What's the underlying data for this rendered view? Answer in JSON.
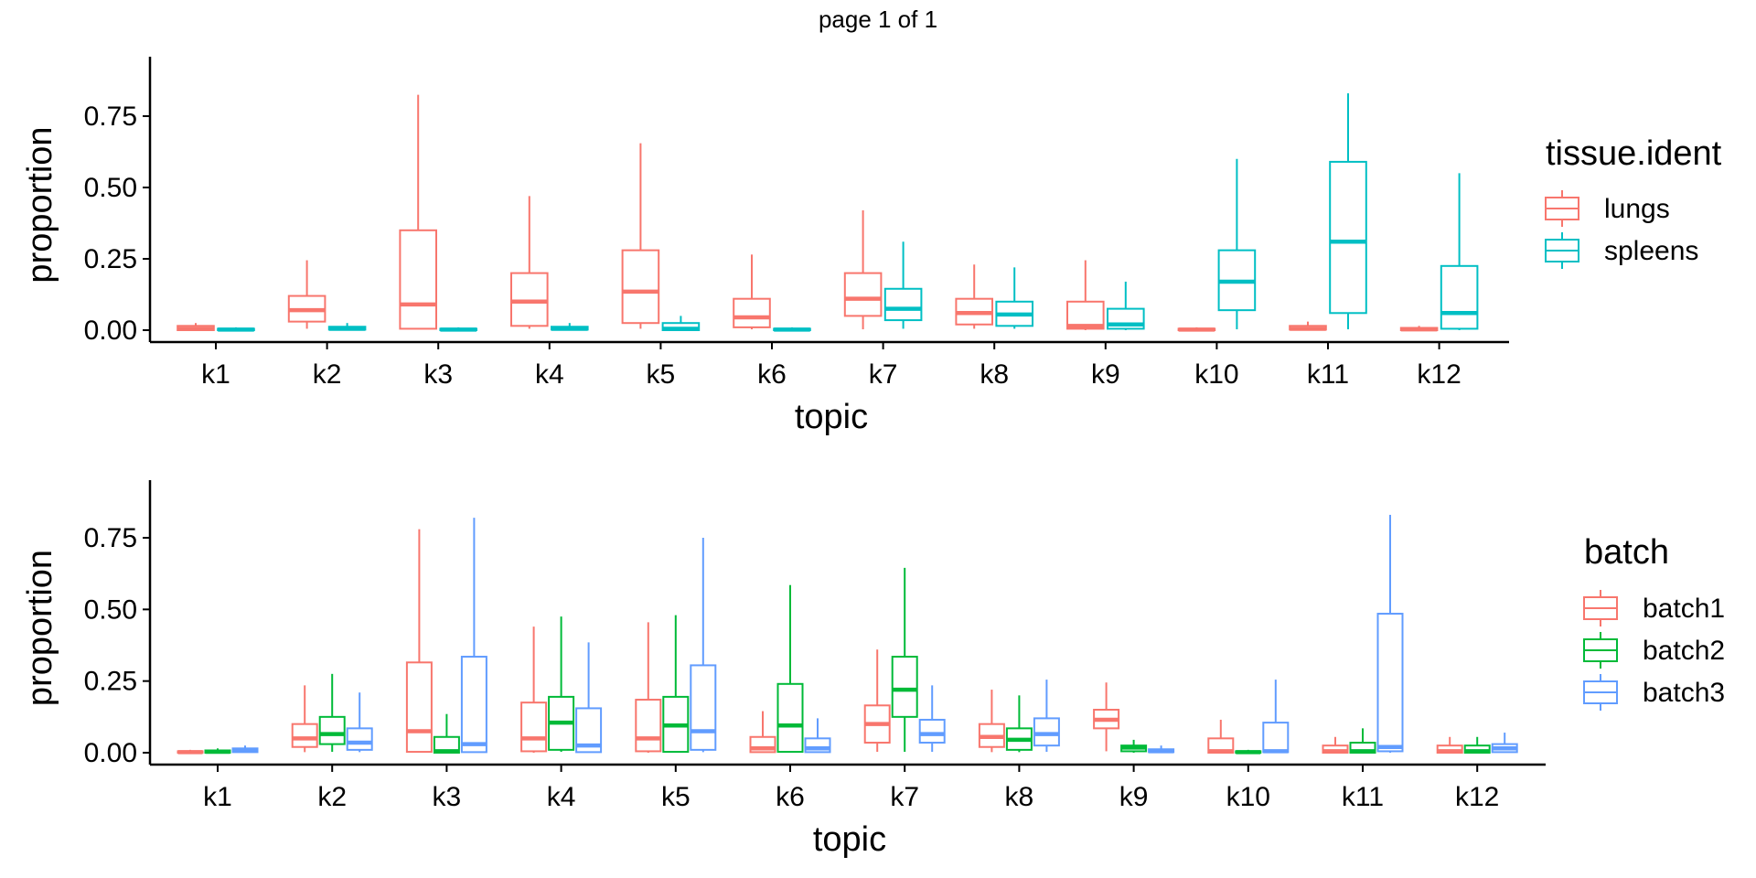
{
  "page_title": "page 1 of 1",
  "chart_data": [
    {
      "type": "boxplot",
      "xlabel": "topic",
      "ylabel": "proportion",
      "categories": [
        "k1",
        "k2",
        "k3",
        "k4",
        "k5",
        "k6",
        "k7",
        "k8",
        "k9",
        "k10",
        "k11",
        "k12"
      ],
      "ylim": [
        -0.03,
        0.95
      ],
      "yticks": [
        0,
        0.25,
        0.5,
        0.75
      ],
      "ytick_labels": [
        "0.00",
        "0.25",
        "0.50",
        "0.75"
      ],
      "grid": false,
      "legend": {
        "title": "tissue.ident",
        "position": "right"
      },
      "series": [
        {
          "name": "lungs",
          "color": "#F8766D",
          "boxes": [
            {
              "min": 0,
              "q1": 0,
              "median": 0.005,
              "q3": 0.015,
              "max": 0.025
            },
            {
              "min": 0.005,
              "q1": 0.03,
              "median": 0.07,
              "q3": 0.12,
              "max": 0.245
            },
            {
              "min": 0.003,
              "q1": 0.005,
              "median": 0.09,
              "q3": 0.35,
              "max": 0.825
            },
            {
              "min": 0.005,
              "q1": 0.015,
              "median": 0.1,
              "q3": 0.2,
              "max": 0.47
            },
            {
              "min": 0.005,
              "q1": 0.025,
              "median": 0.135,
              "q3": 0.28,
              "max": 0.655
            },
            {
              "min": 0.003,
              "q1": 0.01,
              "median": 0.045,
              "q3": 0.11,
              "max": 0.265
            },
            {
              "min": 0.003,
              "q1": 0.05,
              "median": 0.11,
              "q3": 0.2,
              "max": 0.42
            },
            {
              "min": 0.005,
              "q1": 0.02,
              "median": 0.06,
              "q3": 0.11,
              "max": 0.23
            },
            {
              "min": 0,
              "q1": 0.005,
              "median": 0.015,
              "q3": 0.1,
              "max": 0.245
            },
            {
              "min": 0,
              "q1": 0,
              "median": 0.002,
              "q3": 0.005,
              "max": 0.01
            },
            {
              "min": 0,
              "q1": 0.002,
              "median": 0.005,
              "q3": 0.015,
              "max": 0.03
            },
            {
              "min": 0,
              "q1": 0,
              "median": 0.003,
              "q3": 0.008,
              "max": 0.015
            }
          ]
        },
        {
          "name": "spleens",
          "color": "#00BFC4",
          "boxes": [
            {
              "min": 0,
              "q1": 0,
              "median": 0.002,
              "q3": 0.005,
              "max": 0.01
            },
            {
              "min": 0,
              "q1": 0.002,
              "median": 0.005,
              "q3": 0.012,
              "max": 0.025
            },
            {
              "min": 0,
              "q1": 0,
              "median": 0.002,
              "q3": 0.005,
              "max": 0.01
            },
            {
              "min": 0,
              "q1": 0.002,
              "median": 0.005,
              "q3": 0.012,
              "max": 0.025
            },
            {
              "min": 0,
              "q1": 0,
              "median": 0.005,
              "q3": 0.025,
              "max": 0.05
            },
            {
              "min": 0,
              "q1": 0,
              "median": 0.002,
              "q3": 0.005,
              "max": 0.01
            },
            {
              "min": 0.005,
              "q1": 0.035,
              "median": 0.075,
              "q3": 0.145,
              "max": 0.31
            },
            {
              "min": 0.005,
              "q1": 0.015,
              "median": 0.055,
              "q3": 0.1,
              "max": 0.22
            },
            {
              "min": 0,
              "q1": 0.005,
              "median": 0.02,
              "q3": 0.075,
              "max": 0.17
            },
            {
              "min": 0.003,
              "q1": 0.07,
              "median": 0.17,
              "q3": 0.28,
              "max": 0.6
            },
            {
              "min": 0.003,
              "q1": 0.06,
              "median": 0.31,
              "q3": 0.59,
              "max": 0.83
            },
            {
              "min": 0,
              "q1": 0.005,
              "median": 0.06,
              "q3": 0.225,
              "max": 0.55
            }
          ]
        }
      ]
    },
    {
      "type": "boxplot",
      "xlabel": "topic",
      "ylabel": "proportion",
      "categories": [
        "k1",
        "k2",
        "k3",
        "k4",
        "k5",
        "k6",
        "k7",
        "k8",
        "k9",
        "k10",
        "k11",
        "k12"
      ],
      "ylim": [
        -0.03,
        0.95
      ],
      "yticks": [
        0,
        0.25,
        0.5,
        0.75
      ],
      "ytick_labels": [
        "0.00",
        "0.25",
        "0.50",
        "0.75"
      ],
      "grid": false,
      "legend": {
        "title": "batch",
        "position": "right"
      },
      "series": [
        {
          "name": "batch1",
          "color": "#F8766D",
          "boxes": [
            {
              "min": 0,
              "q1": 0,
              "median": 0.002,
              "q3": 0.005,
              "max": 0.01
            },
            {
              "min": 0.002,
              "q1": 0.02,
              "median": 0.05,
              "q3": 0.1,
              "max": 0.235
            },
            {
              "min": 0,
              "q1": 0.003,
              "median": 0.075,
              "q3": 0.315,
              "max": 0.78
            },
            {
              "min": 0,
              "q1": 0.005,
              "median": 0.05,
              "q3": 0.175,
              "max": 0.44
            },
            {
              "min": 0,
              "q1": 0.005,
              "median": 0.05,
              "q3": 0.185,
              "max": 0.455
            },
            {
              "min": 0,
              "q1": 0.002,
              "median": 0.015,
              "q3": 0.055,
              "max": 0.145
            },
            {
              "min": 0.003,
              "q1": 0.035,
              "median": 0.1,
              "q3": 0.165,
              "max": 0.36
            },
            {
              "min": 0.002,
              "q1": 0.02,
              "median": 0.055,
              "q3": 0.1,
              "max": 0.22
            },
            {
              "min": 0.005,
              "q1": 0.085,
              "median": 0.115,
              "q3": 0.15,
              "max": 0.245
            },
            {
              "min": 0,
              "q1": 0,
              "median": 0.005,
              "q3": 0.05,
              "max": 0.115
            },
            {
              "min": 0,
              "q1": 0,
              "median": 0.005,
              "q3": 0.025,
              "max": 0.055
            },
            {
              "min": 0,
              "q1": 0,
              "median": 0.005,
              "q3": 0.025,
              "max": 0.055
            }
          ]
        },
        {
          "name": "batch2",
          "color": "#00BA38",
          "boxes": [
            {
              "min": 0,
              "q1": 0,
              "median": 0.003,
              "q3": 0.008,
              "max": 0.015
            },
            {
              "min": 0.003,
              "q1": 0.03,
              "median": 0.065,
              "q3": 0.125,
              "max": 0.275
            },
            {
              "min": 0,
              "q1": 0,
              "median": 0.005,
              "q3": 0.055,
              "max": 0.135
            },
            {
              "min": 0.003,
              "q1": 0.01,
              "median": 0.105,
              "q3": 0.195,
              "max": 0.475
            },
            {
              "min": 0,
              "q1": 0.003,
              "median": 0.095,
              "q3": 0.195,
              "max": 0.48
            },
            {
              "min": 0,
              "q1": 0.003,
              "median": 0.095,
              "q3": 0.24,
              "max": 0.585
            },
            {
              "min": 0.003,
              "q1": 0.125,
              "median": 0.22,
              "q3": 0.335,
              "max": 0.645
            },
            {
              "min": 0.002,
              "q1": 0.01,
              "median": 0.045,
              "q3": 0.085,
              "max": 0.2
            },
            {
              "min": 0,
              "q1": 0.005,
              "median": 0.018,
              "q3": 0.025,
              "max": 0.045
            },
            {
              "min": 0,
              "q1": 0,
              "median": 0.002,
              "q3": 0.005,
              "max": 0.01
            },
            {
              "min": 0,
              "q1": 0,
              "median": 0.005,
              "q3": 0.035,
              "max": 0.085
            },
            {
              "min": 0,
              "q1": 0,
              "median": 0.005,
              "q3": 0.025,
              "max": 0.055
            }
          ]
        },
        {
          "name": "batch3",
          "color": "#619CFF",
          "boxes": [
            {
              "min": 0,
              "q1": 0.002,
              "median": 0.008,
              "q3": 0.015,
              "max": 0.025
            },
            {
              "min": 0.002,
              "q1": 0.01,
              "median": 0.035,
              "q3": 0.085,
              "max": 0.21
            },
            {
              "min": 0,
              "q1": 0.002,
              "median": 0.03,
              "q3": 0.335,
              "max": 0.82
            },
            {
              "min": 0,
              "q1": 0.002,
              "median": 0.025,
              "q3": 0.155,
              "max": 0.385
            },
            {
              "min": 0.002,
              "q1": 0.01,
              "median": 0.075,
              "q3": 0.305,
              "max": 0.75
            },
            {
              "min": 0,
              "q1": 0.002,
              "median": 0.015,
              "q3": 0.05,
              "max": 0.12
            },
            {
              "min": 0.003,
              "q1": 0.035,
              "median": 0.065,
              "q3": 0.115,
              "max": 0.235
            },
            {
              "min": 0.003,
              "q1": 0.025,
              "median": 0.065,
              "q3": 0.12,
              "max": 0.255
            },
            {
              "min": 0,
              "q1": 0.002,
              "median": 0.005,
              "q3": 0.012,
              "max": 0.025
            },
            {
              "min": 0,
              "q1": 0.002,
              "median": 0.005,
              "q3": 0.105,
              "max": 0.255
            },
            {
              "min": 0,
              "q1": 0.005,
              "median": 0.02,
              "q3": 0.485,
              "max": 0.83
            },
            {
              "min": 0,
              "q1": 0.002,
              "median": 0.015,
              "q3": 0.03,
              "max": 0.07
            }
          ]
        }
      ]
    }
  ]
}
